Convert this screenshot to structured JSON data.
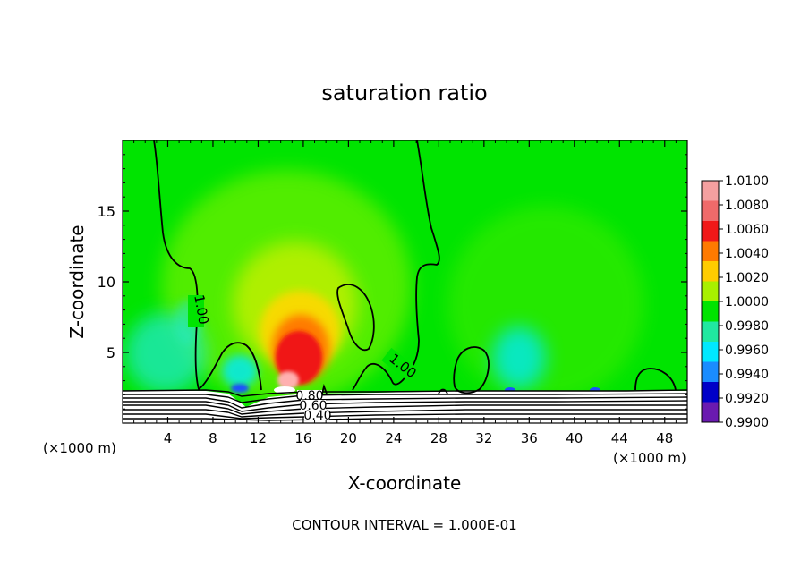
{
  "chart_data": {
    "type": "heatmap",
    "title": "saturation ratio",
    "xlabel": "X-coordinate",
    "ylabel": "Z-coordinate",
    "x_unit_left": "(×1000 m)",
    "x_unit_right": "(×1000 m)",
    "footer": "CONTOUR INTERVAL = 1.000E-01",
    "xlim": [
      0,
      50
    ],
    "ylim": [
      0,
      20
    ],
    "xticks": [
      4,
      8,
      12,
      16,
      20,
      24,
      28,
      32,
      36,
      40,
      44,
      48
    ],
    "yticks": [
      5,
      10,
      15
    ],
    "colorbar": {
      "min": 0.99,
      "max": 1.01,
      "labels": [
        "1.0100",
        "1.0080",
        "1.0060",
        "1.0040",
        "1.0020",
        "1.0000",
        "0.9980",
        "0.9960",
        "0.9940",
        "0.9920",
        "0.9900"
      ],
      "colors": [
        "#f4a0a0",
        "#ef6a6a",
        "#f01818",
        "#ff7a00",
        "#ffcc00",
        "#a8f000",
        "#00e400",
        "#20e8a0",
        "#00e8ff",
        "#1a8cff",
        "#0000c8",
        "#6a1ab0"
      ]
    },
    "contour_labels": [
      "1.00",
      "1.00",
      "0.80",
      "0.60",
      "0.40"
    ]
  },
  "colors": {
    "background_field": "#00e400",
    "contour": "#000000"
  }
}
